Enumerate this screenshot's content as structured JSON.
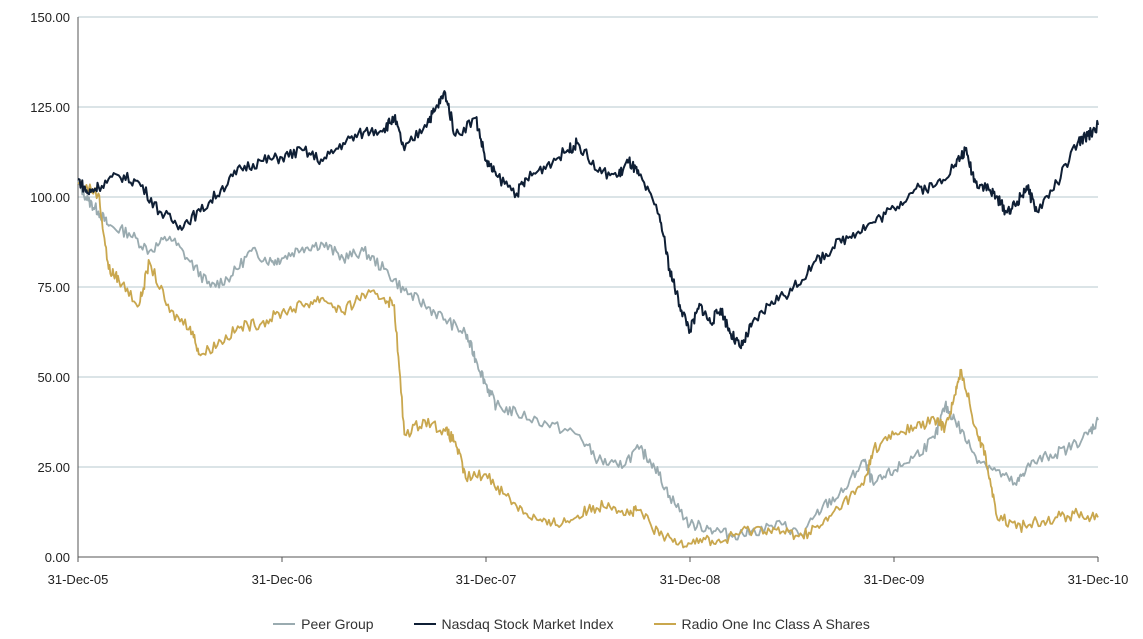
{
  "chart_data": {
    "type": "line",
    "title": "",
    "xlabel": "",
    "ylabel": "",
    "ylim": [
      0,
      150
    ],
    "yticks": [
      "0.00",
      "25.00",
      "50.00",
      "75.00",
      "100.00",
      "125.00",
      "150.00"
    ],
    "xticks": [
      "31-Dec-05",
      "31-Dec-06",
      "31-Dec-07",
      "31-Dec-08",
      "31-Dec-09",
      "31-Dec-10"
    ],
    "grid": "horizontal",
    "legend_position": "bottom",
    "series": [
      {
        "name": "Peer Group",
        "color": "#9aabb0",
        "points": [
          [
            0,
            104
          ],
          [
            0.05,
            99
          ],
          [
            0.1,
            96
          ],
          [
            0.15,
            92
          ],
          [
            0.25,
            90
          ],
          [
            0.35,
            85
          ],
          [
            0.45,
            89
          ],
          [
            0.55,
            82
          ],
          [
            0.65,
            75
          ],
          [
            0.75,
            78
          ],
          [
            0.85,
            85
          ],
          [
            0.95,
            82
          ],
          [
            1.0,
            83
          ],
          [
            1.1,
            86
          ],
          [
            1.2,
            87
          ],
          [
            1.3,
            83
          ],
          [
            1.4,
            85
          ],
          [
            1.5,
            80
          ],
          [
            1.6,
            74
          ],
          [
            1.7,
            70
          ],
          [
            1.8,
            66
          ],
          [
            1.9,
            62
          ],
          [
            1.95,
            55
          ],
          [
            2.0,
            48
          ],
          [
            2.05,
            42
          ],
          [
            2.15,
            40
          ],
          [
            2.3,
            37
          ],
          [
            2.45,
            34
          ],
          [
            2.55,
            27
          ],
          [
            2.65,
            25
          ],
          [
            2.75,
            30
          ],
          [
            2.82,
            26
          ],
          [
            2.9,
            17
          ],
          [
            3.0,
            9
          ],
          [
            3.1,
            8
          ],
          [
            3.2,
            6
          ],
          [
            3.3,
            7
          ],
          [
            3.45,
            9
          ],
          [
            3.55,
            6
          ],
          [
            3.65,
            14
          ],
          [
            3.75,
            18
          ],
          [
            3.85,
            27
          ],
          [
            3.9,
            20
          ],
          [
            4.0,
            24
          ],
          [
            4.1,
            28
          ],
          [
            4.2,
            33
          ],
          [
            4.25,
            42
          ],
          [
            4.3,
            38
          ],
          [
            4.4,
            28
          ],
          [
            4.5,
            24
          ],
          [
            4.6,
            20
          ],
          [
            4.65,
            25
          ],
          [
            4.75,
            28
          ],
          [
            4.85,
            30
          ],
          [
            4.95,
            34
          ],
          [
            5.0,
            38
          ]
        ]
      },
      {
        "name": "Nasdaq Stock Market Index",
        "color": "#0f1f35",
        "points": [
          [
            0,
            105
          ],
          [
            0.05,
            101
          ],
          [
            0.1,
            103
          ],
          [
            0.2,
            106
          ],
          [
            0.3,
            104
          ],
          [
            0.4,
            96
          ],
          [
            0.5,
            92
          ],
          [
            0.6,
            96
          ],
          [
            0.7,
            102
          ],
          [
            0.8,
            108
          ],
          [
            0.9,
            110
          ],
          [
            1.0,
            111
          ],
          [
            1.1,
            113
          ],
          [
            1.2,
            110
          ],
          [
            1.3,
            115
          ],
          [
            1.4,
            118
          ],
          [
            1.5,
            119
          ],
          [
            1.55,
            122
          ],
          [
            1.6,
            113
          ],
          [
            1.7,
            120
          ],
          [
            1.75,
            124
          ],
          [
            1.8,
            129
          ],
          [
            1.85,
            117
          ],
          [
            1.95,
            122
          ],
          [
            2.0,
            110
          ],
          [
            2.05,
            106
          ],
          [
            2.15,
            101
          ],
          [
            2.2,
            105
          ],
          [
            2.3,
            109
          ],
          [
            2.4,
            113
          ],
          [
            2.45,
            115
          ],
          [
            2.55,
            107
          ],
          [
            2.65,
            106
          ],
          [
            2.7,
            110
          ],
          [
            2.75,
            106
          ],
          [
            2.85,
            95
          ],
          [
            2.9,
            80
          ],
          [
            2.95,
            70
          ],
          [
            3.0,
            63
          ],
          [
            3.05,
            70
          ],
          [
            3.1,
            65
          ],
          [
            3.15,
            69
          ],
          [
            3.2,
            62
          ],
          [
            3.25,
            58
          ],
          [
            3.3,
            64
          ],
          [
            3.4,
            71
          ],
          [
            3.5,
            74
          ],
          [
            3.6,
            81
          ],
          [
            3.7,
            86
          ],
          [
            3.8,
            90
          ],
          [
            3.9,
            93
          ],
          [
            4.0,
            97
          ],
          [
            4.1,
            102
          ],
          [
            4.2,
            103
          ],
          [
            4.3,
            109
          ],
          [
            4.35,
            113
          ],
          [
            4.4,
            104
          ],
          [
            4.45,
            103
          ],
          [
            4.5,
            100
          ],
          [
            4.55,
            96
          ],
          [
            4.6,
            98
          ],
          [
            4.65,
            103
          ],
          [
            4.7,
            96
          ],
          [
            4.8,
            104
          ],
          [
            4.9,
            115
          ],
          [
            4.95,
            117
          ],
          [
            5.0,
            120
          ]
        ]
      },
      {
        "name": "Radio One Inc Class A Shares",
        "color": "#c9a74e",
        "points": [
          [
            0,
            104
          ],
          [
            0.1,
            101
          ],
          [
            0.15,
            80
          ],
          [
            0.2,
            77
          ],
          [
            0.3,
            70
          ],
          [
            0.35,
            82
          ],
          [
            0.45,
            68
          ],
          [
            0.55,
            64
          ],
          [
            0.6,
            56
          ],
          [
            0.7,
            60
          ],
          [
            0.8,
            64
          ],
          [
            0.9,
            65
          ],
          [
            1.0,
            68
          ],
          [
            1.1,
            70
          ],
          [
            1.2,
            72
          ],
          [
            1.3,
            68
          ],
          [
            1.4,
            73
          ],
          [
            1.5,
            72
          ],
          [
            1.55,
            70
          ],
          [
            1.6,
            34
          ],
          [
            1.7,
            38
          ],
          [
            1.8,
            35
          ],
          [
            1.85,
            32
          ],
          [
            1.9,
            22
          ],
          [
            2.0,
            23
          ],
          [
            2.1,
            17
          ],
          [
            2.2,
            12
          ],
          [
            2.3,
            9
          ],
          [
            2.4,
            10
          ],
          [
            2.5,
            13
          ],
          [
            2.6,
            15
          ],
          [
            2.7,
            12
          ],
          [
            2.75,
            13
          ],
          [
            2.85,
            6
          ],
          [
            2.95,
            4
          ],
          [
            3.05,
            5
          ],
          [
            3.15,
            4
          ],
          [
            3.25,
            7
          ],
          [
            3.35,
            8
          ],
          [
            3.45,
            7
          ],
          [
            3.55,
            6
          ],
          [
            3.65,
            9
          ],
          [
            3.75,
            15
          ],
          [
            3.85,
            20
          ],
          [
            3.9,
            30
          ],
          [
            4.0,
            34
          ],
          [
            4.1,
            36
          ],
          [
            4.2,
            38
          ],
          [
            4.25,
            36
          ],
          [
            4.3,
            45
          ],
          [
            4.33,
            52
          ],
          [
            4.4,
            36
          ],
          [
            4.45,
            28
          ],
          [
            4.5,
            12
          ],
          [
            4.6,
            8
          ],
          [
            4.7,
            10
          ],
          [
            4.8,
            11
          ],
          [
            4.9,
            12
          ],
          [
            5.0,
            11
          ]
        ]
      }
    ]
  }
}
